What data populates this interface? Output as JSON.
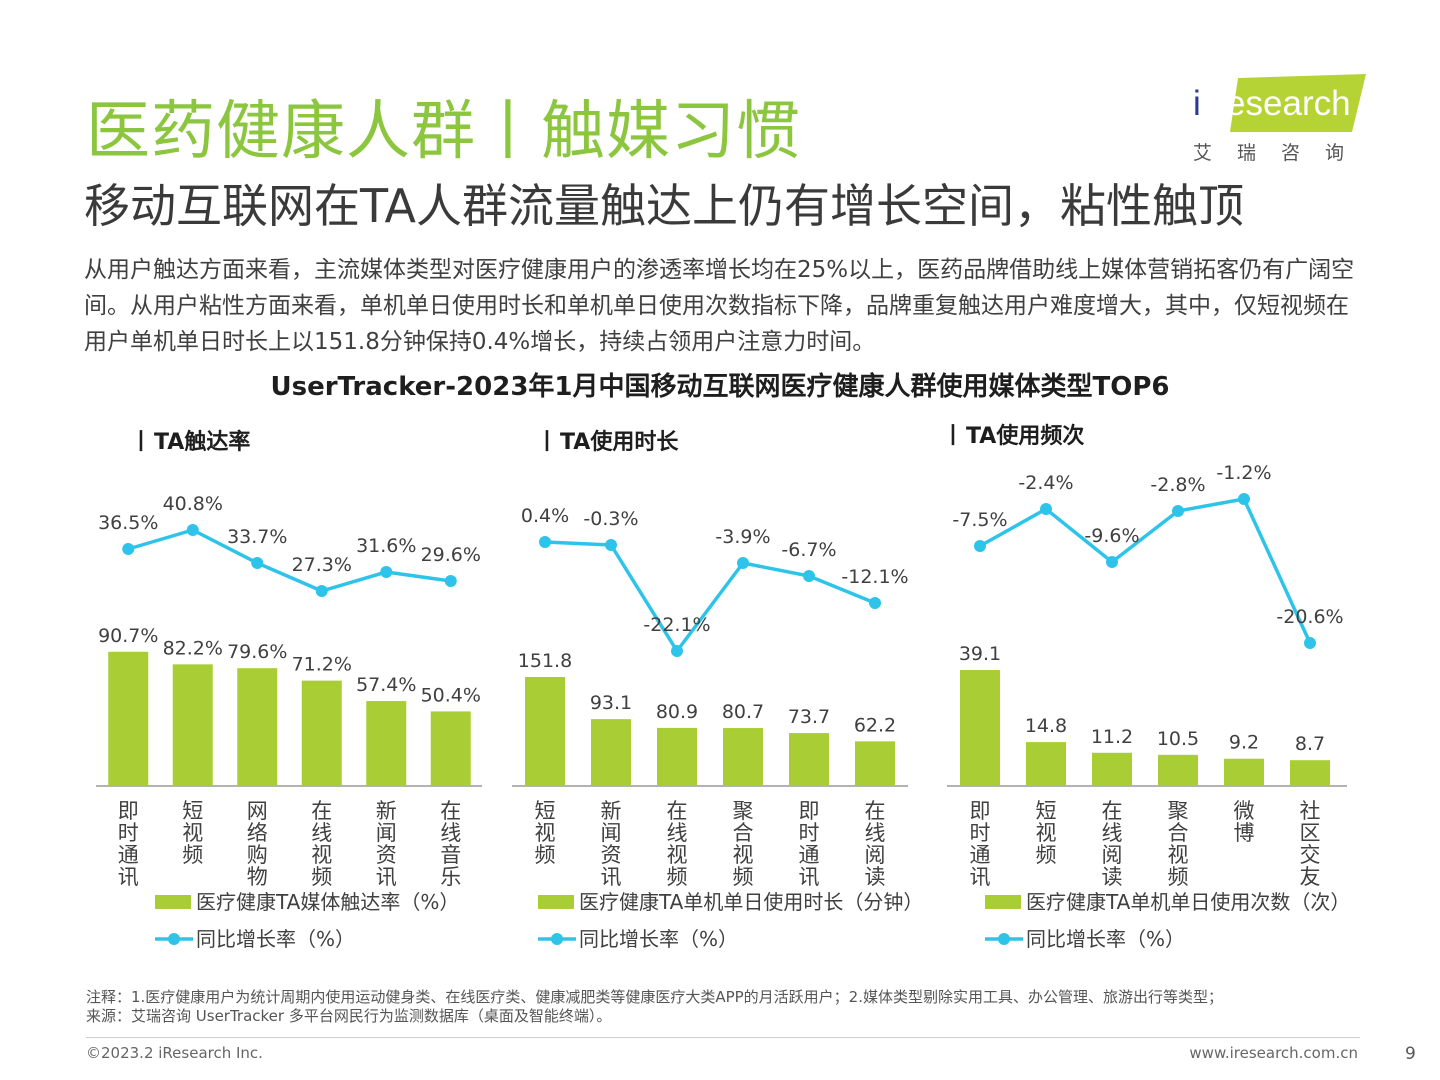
{
  "header": {
    "title": "医药健康人群丨触媒习惯",
    "subtitle": "移动互联网在TA人群流量触达上仍有增长空间，粘性触顶",
    "description": "从用户触达方面来看，主流媒体类型对医疗健康用户的渗透率增长均在25%以上，医药品牌借助线上媒体营销拓客仍有广阔空间。从用户粘性方面来看，单机单日使用时长和单机单日使用次数指标下降，品牌重复触达用户难度增大，其中，仅短视频在用户单机单日时长上以151.8分钟保持0.4%增长，持续占领用户注意力时间。",
    "charts_title": "UserTracker-2023年1月中国移动互联网医疗健康人群使用媒体类型TOP6"
  },
  "logo": {
    "brand_i": "i",
    "brand_rest": "Research",
    "chinese": "艾瑞咨询"
  },
  "colors": {
    "title_green": "#8cc63f",
    "bar_green": "#a9cd35",
    "line_blue": "#2ec4ea",
    "logo_green": "#b5d334"
  },
  "chart_data": [
    {
      "type": "bar",
      "title": "TA触达率",
      "categories": [
        "即时通讯",
        "短视频",
        "网络购物",
        "在线视频",
        "新闻资讯",
        "在线音乐"
      ],
      "series": [
        {
          "name": "医疗健康TA媒体触达率（%）",
          "type": "bar",
          "values": [
            90.7,
            82.2,
            79.6,
            71.2,
            57.4,
            50.4
          ],
          "labels": [
            "90.7%",
            "82.2%",
            "79.6%",
            "71.2%",
            "57.4%",
            "50.4%"
          ]
        },
        {
          "name": "同比增长率（%）",
          "type": "line",
          "values": [
            36.5,
            40.8,
            33.7,
            27.3,
            31.6,
            29.6
          ],
          "labels": [
            "36.5%",
            "40.8%",
            "33.7%",
            "27.3%",
            "31.6%",
            "29.6%"
          ]
        }
      ],
      "legend_position": "bottom"
    },
    {
      "type": "bar",
      "title": "TA使用时长",
      "categories": [
        "短视频",
        "新闻资讯",
        "在线视频",
        "聚合视频",
        "即时通讯",
        "在线阅读"
      ],
      "series": [
        {
          "name": "医疗健康TA单机单日使用时长（分钟）",
          "type": "bar",
          "values": [
            151.8,
            93.1,
            80.9,
            80.7,
            73.7,
            62.2
          ],
          "labels": [
            "151.8",
            "93.1",
            "80.9",
            "80.7",
            "73.7",
            "62.2"
          ]
        },
        {
          "name": "同比增长率（%）",
          "type": "line",
          "values": [
            0.4,
            -0.3,
            -22.1,
            -3.9,
            -6.7,
            -12.1
          ],
          "labels": [
            "0.4%",
            "-0.3%",
            "-22.1%",
            "-3.9%",
            "-6.7%",
            "-12.1%"
          ]
        }
      ],
      "legend_position": "bottom"
    },
    {
      "type": "bar",
      "title": "TA使用频次",
      "categories": [
        "即时通讯",
        "短视频",
        "在线阅读",
        "聚合视频",
        "微博",
        "社区交友"
      ],
      "series": [
        {
          "name": "医疗健康TA单机单日使用次数（次）",
          "type": "bar",
          "values": [
            39.1,
            14.8,
            11.2,
            10.5,
            9.2,
            8.7
          ],
          "labels": [
            "39.1",
            "14.8",
            "11.2",
            "10.5",
            "9.2",
            "8.7"
          ]
        },
        {
          "name": "同比增长率（%）",
          "type": "line",
          "values": [
            -7.5,
            -2.4,
            -9.6,
            -2.8,
            -1.2,
            -20.6
          ],
          "labels": [
            "-7.5%",
            "-2.4%",
            "-9.6%",
            "-2.8%",
            "-1.2%",
            "-20.6%"
          ]
        }
      ],
      "legend_position": "bottom"
    }
  ],
  "footer": {
    "note": "注释：1.医疗健康用户为统计周期内使用运动健身类、在线医疗类、健康减肥类等健康医疗大类APP的月活跃用户；2.媒体类型剔除实用工具、办公管理、旅游出行等类型；",
    "source": "来源：艾瑞咨询 UserTracker 多平台网民行为监测数据库（桌面及智能终端）。",
    "copyright": "©2023.2 iResearch Inc.",
    "website": "www.iresearch.com.cn",
    "page_number": "9"
  }
}
